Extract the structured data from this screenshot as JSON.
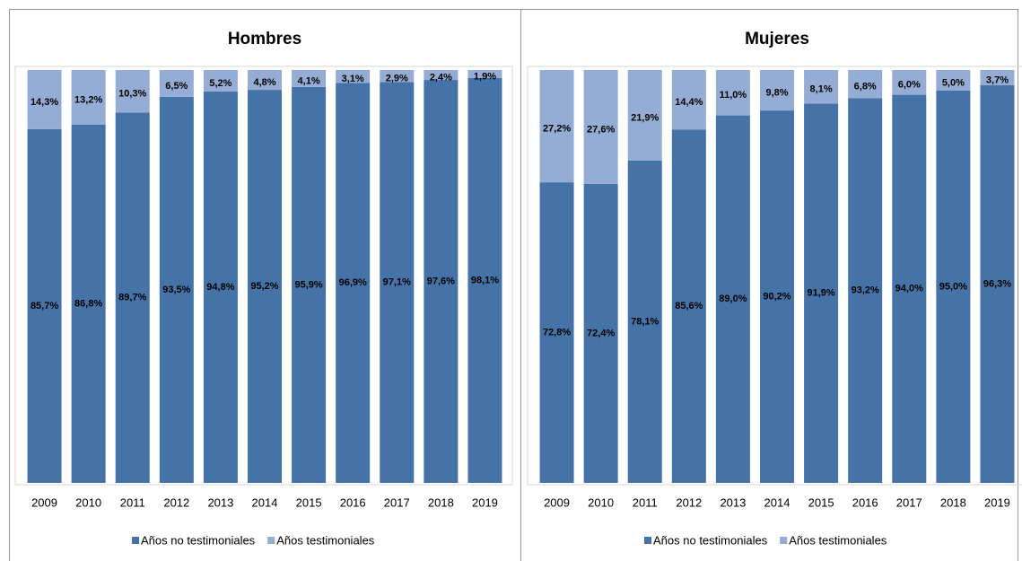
{
  "chart_data": [
    {
      "type": "bar",
      "stacked": true,
      "title": "Hombres",
      "categories": [
        "2009",
        "2010",
        "2011",
        "2012",
        "2013",
        "2014",
        "2015",
        "2016",
        "2017",
        "2018",
        "2019"
      ],
      "series": [
        {
          "name": "Años no testimoniales",
          "color": "#4673a7",
          "values": [
            85.7,
            86.8,
            89.7,
            93.5,
            94.8,
            95.2,
            95.9,
            96.9,
            97.1,
            97.6,
            98.1
          ],
          "value_labels": [
            "85,7%",
            "86,8%",
            "89,7%",
            "93,5%",
            "94,8%",
            "95,2%",
            "95,9%",
            "96,9%",
            "97,1%",
            "97,6%",
            "98,1%"
          ]
        },
        {
          "name": "Años testimoniales",
          "color": "#95acd5",
          "values": [
            14.3,
            13.2,
            10.3,
            6.5,
            5.2,
            4.8,
            4.1,
            3.1,
            2.9,
            2.4,
            1.9
          ],
          "value_labels": [
            "14,3%",
            "13,2%",
            "10,3%",
            "6,5%",
            "5,2%",
            "4,8%",
            "4,1%",
            "3,1%",
            "2,9%",
            "2,4%",
            "1,9%"
          ]
        }
      ],
      "ylim": [
        0,
        100
      ],
      "legend": "bottom"
    },
    {
      "type": "bar",
      "stacked": true,
      "title": "Mujeres",
      "categories": [
        "2009",
        "2010",
        "2011",
        "2012",
        "2013",
        "2014",
        "2015",
        "2016",
        "2017",
        "2018",
        "2019"
      ],
      "series": [
        {
          "name": "Años no testimoniales",
          "color": "#4673a7",
          "values": [
            72.8,
            72.4,
            78.1,
            85.6,
            89.0,
            90.2,
            91.9,
            93.2,
            94.0,
            95.0,
            96.3
          ],
          "value_labels": [
            "72,8%",
            "72,4%",
            "78,1%",
            "85,6%",
            "89,0%",
            "90,2%",
            "91,9%",
            "93,2%",
            "94,0%",
            "95,0%",
            "96,3%"
          ]
        },
        {
          "name": "Años testimoniales",
          "color": "#95acd5",
          "values": [
            27.2,
            27.6,
            21.9,
            14.4,
            11.0,
            9.8,
            8.1,
            6.8,
            6.0,
            5.0,
            3.7
          ],
          "value_labels": [
            "27,2%",
            "27,6%",
            "21,9%",
            "14,4%",
            "11,0%",
            "9,8%",
            "8,1%",
            "6,8%",
            "6,0%",
            "5,0%",
            "3,7%"
          ]
        }
      ],
      "ylim": [
        0,
        100
      ],
      "legend": "bottom"
    }
  ]
}
